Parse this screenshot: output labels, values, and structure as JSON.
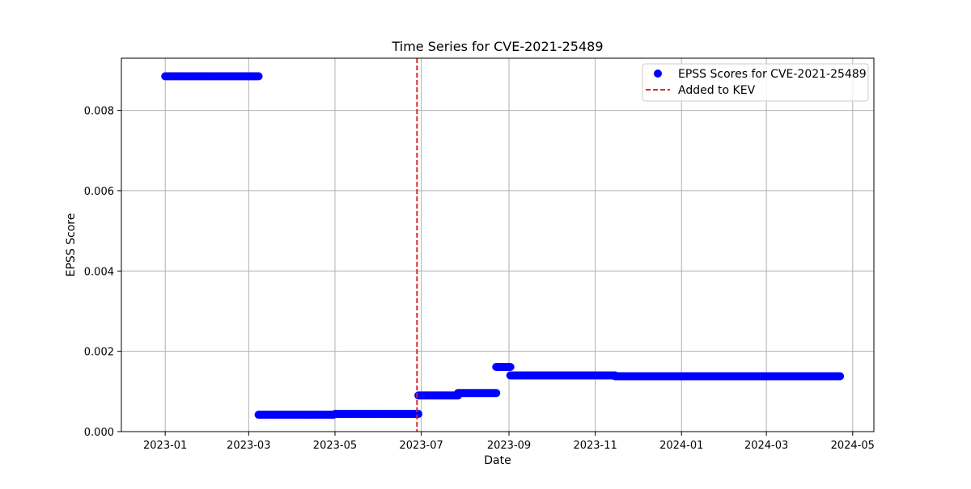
{
  "chart_data": {
    "type": "scatter",
    "title": "Time Series for CVE-2021-25489",
    "xlabel": "Date",
    "ylabel": "EPSS Score",
    "x_type": "date",
    "xlim": [
      "2022-12-01",
      "2024-05-16"
    ],
    "ylim": [
      0,
      0.0093
    ],
    "x_ticks": [
      {
        "date": "2023-01-01",
        "label": "2023-01"
      },
      {
        "date": "2023-03-01",
        "label": "2023-03"
      },
      {
        "date": "2023-05-01",
        "label": "2023-05"
      },
      {
        "date": "2023-07-01",
        "label": "2023-07"
      },
      {
        "date": "2023-09-01",
        "label": "2023-09"
      },
      {
        "date": "2023-11-01",
        "label": "2023-11"
      },
      {
        "date": "2024-01-01",
        "label": "2024-01"
      },
      {
        "date": "2024-03-01",
        "label": "2024-03"
      },
      {
        "date": "2024-05-01",
        "label": "2024-05"
      }
    ],
    "y_ticks": [
      {
        "value": 0,
        "label": "0.000"
      },
      {
        "value": 0.002,
        "label": "0.002"
      },
      {
        "value": 0.004,
        "label": "0.004"
      },
      {
        "value": 0.006,
        "label": "0.006"
      },
      {
        "value": 0.008,
        "label": "0.008"
      }
    ],
    "grid": true,
    "legend_position": "top-right",
    "legend": [
      {
        "label": "EPSS Scores for CVE-2021-25489",
        "kind": "marker",
        "color": "#0000ff"
      },
      {
        "label": "Added to KEV",
        "kind": "dashed-line",
        "color": "#d62728"
      }
    ],
    "series": [
      {
        "name": "EPSS Scores for CVE-2021-25489",
        "color": "#0000ff",
        "segments": [
          {
            "start": "2023-01-01",
            "end": "2023-03-08",
            "value": 0.00885
          },
          {
            "start": "2023-03-08",
            "end": "2023-04-30",
            "value": 0.00042
          },
          {
            "start": "2023-05-01",
            "end": "2023-06-29",
            "value": 0.00044
          },
          {
            "start": "2023-06-29",
            "end": "2023-07-27",
            "value": 0.0009
          },
          {
            "start": "2023-07-27",
            "end": "2023-08-23",
            "value": 0.00096
          },
          {
            "start": "2023-08-23",
            "end": "2023-09-02",
            "value": 0.00161
          },
          {
            "start": "2023-09-02",
            "end": "2023-11-15",
            "value": 0.0014
          },
          {
            "start": "2023-11-15",
            "end": "2024-04-22",
            "value": 0.00138
          }
        ]
      }
    ],
    "vlines": [
      {
        "label": "Added to KEV",
        "date": "2023-06-28",
        "color": "#d62728",
        "style": "dashed"
      }
    ]
  }
}
